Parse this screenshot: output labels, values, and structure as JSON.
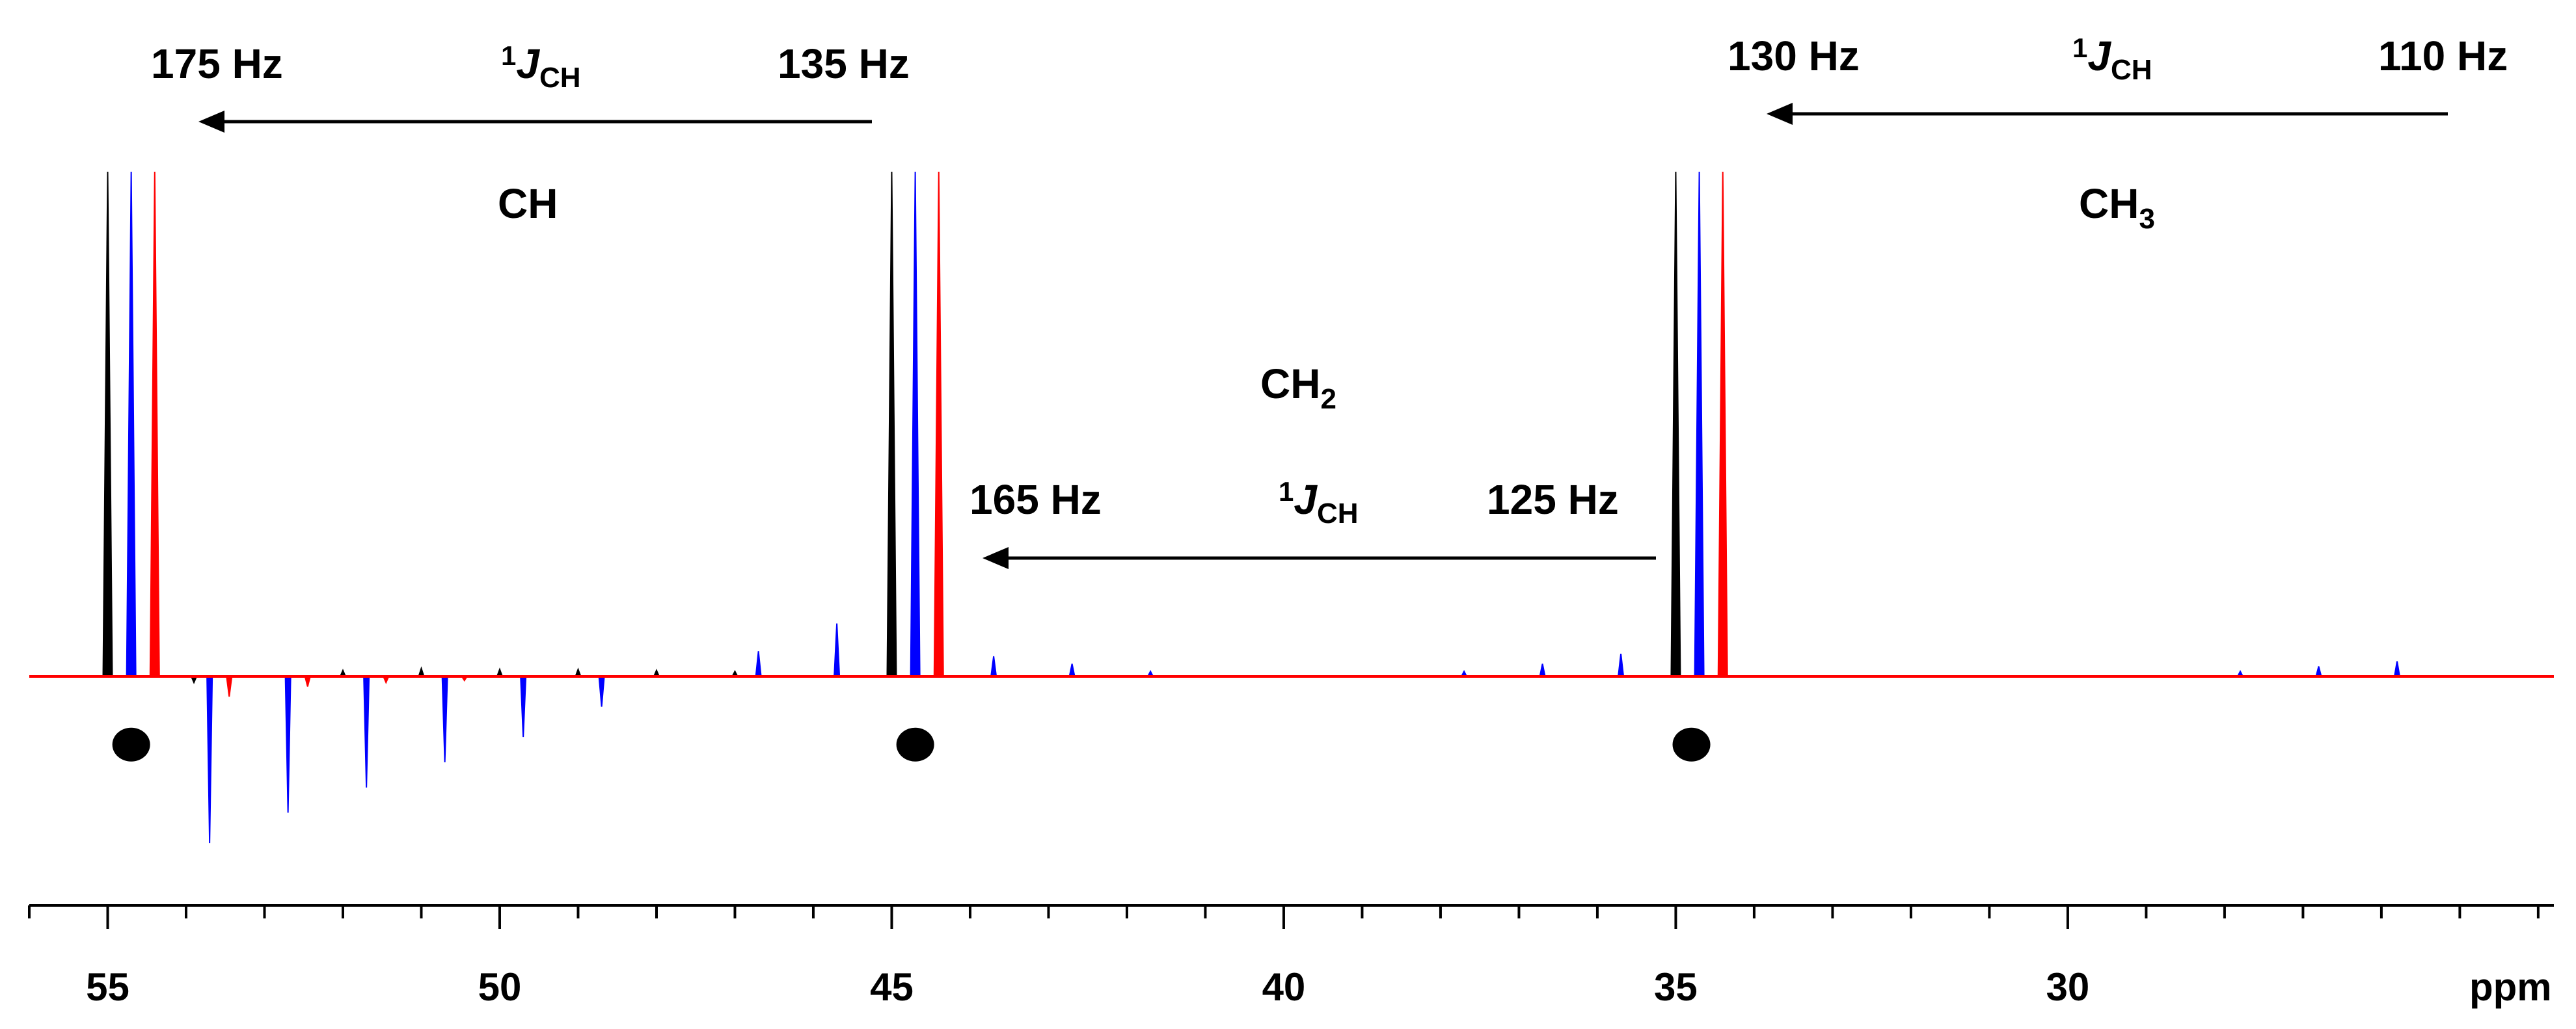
{
  "chart_data": {
    "type": "line",
    "title": "",
    "xlabel": "ppm",
    "ylabel": "",
    "xlim": [
      56,
      23.8
    ],
    "x_reversed": true,
    "ylim": [
      -0.36,
      1.0
    ],
    "grid": false,
    "legend": "none",
    "x_ticks": [
      55,
      50,
      45,
      40,
      35,
      30
    ],
    "x_minor_step": 1,
    "colors": {
      "black": "#000000",
      "blue": "#0000ff",
      "red": "#ff0000"
    },
    "series": [
      {
        "color": "#000000",
        "peaks": [
          {
            "x": 55.0,
            "y": 1.0
          },
          {
            "x": 45.0,
            "y": 1.0
          },
          {
            "x": 35.0,
            "y": 1.0
          },
          {
            "x": 53.9,
            "y": -0.012
          },
          {
            "x": 52.0,
            "y": 0.012
          },
          {
            "x": 51.0,
            "y": 0.016
          },
          {
            "x": 50.0,
            "y": 0.014
          },
          {
            "x": 49.0,
            "y": 0.014
          },
          {
            "x": 48.0,
            "y": 0.012
          },
          {
            "x": 47.0,
            "y": 0.01
          }
        ]
      },
      {
        "color": "#0000ff",
        "peaks": [
          {
            "x": 54.7,
            "y": 1.0
          },
          {
            "x": 44.7,
            "y": 1.0
          },
          {
            "x": 34.7,
            "y": 1.0
          },
          {
            "x": 53.7,
            "y": -0.33
          },
          {
            "x": 52.7,
            "y": -0.27
          },
          {
            "x": 51.7,
            "y": -0.22
          },
          {
            "x": 50.7,
            "y": -0.17
          },
          {
            "x": 49.7,
            "y": -0.12
          },
          {
            "x": 48.7,
            "y": -0.06
          },
          {
            "x": 46.7,
            "y": 0.05
          },
          {
            "x": 45.7,
            "y": 0.105
          },
          {
            "x": 43.7,
            "y": 0.04
          },
          {
            "x": 42.7,
            "y": 0.025
          },
          {
            "x": 41.7,
            "y": 0.01
          },
          {
            "x": 37.7,
            "y": 0.01
          },
          {
            "x": 36.7,
            "y": 0.025
          },
          {
            "x": 35.7,
            "y": 0.045
          },
          {
            "x": 27.8,
            "y": 0.01
          },
          {
            "x": 26.8,
            "y": 0.02
          },
          {
            "x": 25.8,
            "y": 0.03
          }
        ]
      },
      {
        "color": "#ff0000",
        "peaks": [
          {
            "x": 54.4,
            "y": 1.0
          },
          {
            "x": 44.4,
            "y": 1.0
          },
          {
            "x": 34.4,
            "y": 1.0
          },
          {
            "x": 53.45,
            "y": -0.04
          },
          {
            "x": 52.45,
            "y": -0.02
          },
          {
            "x": 51.45,
            "y": -0.012
          },
          {
            "x": 50.45,
            "y": -0.008
          }
        ]
      }
    ],
    "markers": [
      {
        "x": 54.7,
        "y": -0.135
      },
      {
        "x": 44.7,
        "y": -0.135
      },
      {
        "x": 34.8,
        "y": -0.135
      }
    ],
    "annotations": {
      "ch_group": {
        "label": "CH",
        "left_hz": "175 Hz",
        "right_hz": "135 Hz",
        "coupling_sup": "1",
        "coupling_main": "J",
        "coupling_sub": "CH"
      },
      "ch3_group": {
        "label_main": "CH",
        "label_sub": "3",
        "left_hz": "130 Hz",
        "right_hz": "110 Hz",
        "coupling_sup": "1",
        "coupling_main": "J",
        "coupling_sub": "CH"
      },
      "ch2_group": {
        "label_main": "CH",
        "label_sub": "2",
        "left_hz": "165 Hz",
        "right_hz": "125 Hz",
        "coupling_sup": "1",
        "coupling_main": "J",
        "coupling_sub": "CH"
      }
    }
  }
}
